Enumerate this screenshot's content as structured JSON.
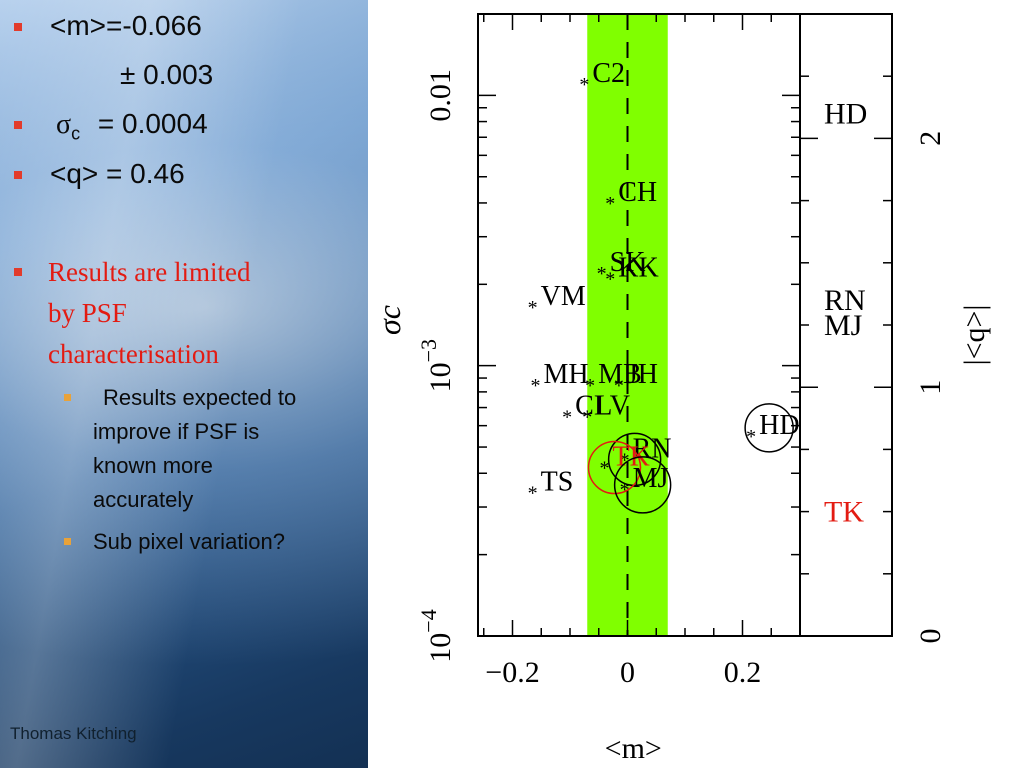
{
  "slide": {
    "bullets": [
      {
        "text": "<m>=-0.066"
      },
      {
        "text": "± 0.003"
      },
      {
        "sigma": "σ",
        "sub": "c",
        "text": "= 0.0004"
      },
      {
        "text": "<q> = 0.46"
      }
    ],
    "highlight": {
      "line1": "Results are limited",
      "line2": "by PSF",
      "line3": "characterisation"
    },
    "subbullets": [
      {
        "line1": "Results expected to",
        "line2": "improve if PSF is",
        "line3": "known more",
        "line4": "accurately"
      },
      {
        "line1": "Sub pixel variation?"
      }
    ],
    "author": "Thomas Kitching"
  },
  "chart_data": {
    "type": "scatter",
    "xlabel": "<m>",
    "ylabel": "σc",
    "ylabel_right": "|<q>|",
    "xlim": [
      -0.26,
      0.3
    ],
    "ylim": [
      0.0001,
      0.02
    ],
    "y_scale": "log",
    "x_ticks": [
      -0.2,
      0,
      0.2
    ],
    "x_tick_labels": [
      "−0.2",
      "0",
      "0.2"
    ],
    "y_tick_labels": [
      {
        "base": "10",
        "exp": "−4",
        "value": 0.0001
      },
      {
        "base": "10",
        "exp": "−3",
        "value": 0.001
      },
      {
        "text": "0.01",
        "value": 0.01
      }
    ],
    "right_ylim": [
      0,
      2.5
    ],
    "right_ticks": [
      0,
      1,
      2
    ],
    "band": {
      "x": [
        -0.07,
        0.07
      ],
      "color": "#80ff00"
    },
    "dashed_line_x": 0,
    "points": [
      {
        "label": "C2",
        "x": -0.075,
        "y": 0.011
      },
      {
        "label": "CH",
        "x": -0.03,
        "y": 0.004
      },
      {
        "label": "SK",
        "x": -0.045,
        "y": 0.0022
      },
      {
        "label": "KK",
        "x": -0.03,
        "y": 0.0021
      },
      {
        "label": "VM",
        "x": -0.165,
        "y": 0.00165
      },
      {
        "label": "MH",
        "x": -0.16,
        "y": 0.00085
      },
      {
        "label": "MB",
        "x": -0.065,
        "y": 0.00085
      },
      {
        "label": "JH",
        "x": -0.015,
        "y": 0.00085
      },
      {
        "label": "CI",
        "x": -0.105,
        "y": 0.00065
      },
      {
        "label": "LV",
        "x": -0.07,
        "y": 0.00065
      },
      {
        "label": "HD",
        "x": 0.215,
        "y": 0.00055
      },
      {
        "label": "RN",
        "x": -0.005,
        "y": 0.00045
      },
      {
        "label": "TK",
        "x": -0.04,
        "y": 0.00042
      },
      {
        "label": "MJ",
        "x": -0.005,
        "y": 0.00035
      },
      {
        "label": "TS",
        "x": -0.165,
        "y": 0.00034
      }
    ],
    "right_panel": [
      {
        "label": "HD",
        "q": 2.1
      },
      {
        "label": "RN",
        "q": 1.35
      },
      {
        "label": "MJ",
        "q": 1.25
      },
      {
        "label": "TK",
        "q": 0.5
      }
    ],
    "colors": {
      "highlight": "#e31b12",
      "axis": "#000000"
    }
  }
}
